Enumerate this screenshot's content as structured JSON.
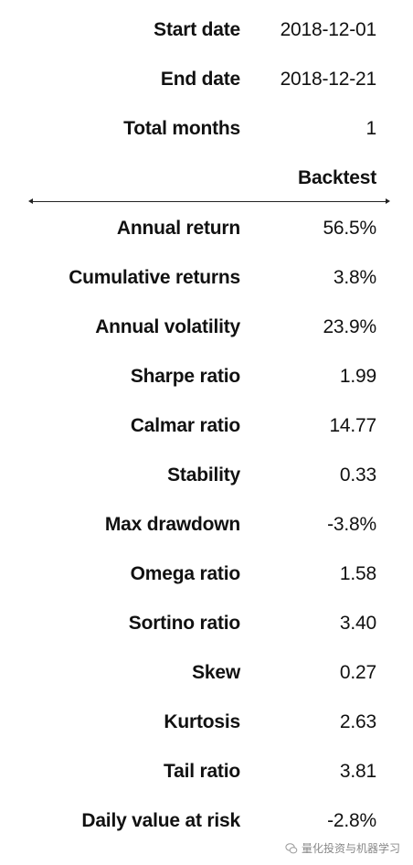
{
  "info": [
    {
      "label": "Start date",
      "value": "2018-12-01"
    },
    {
      "label": "End date",
      "value": "2018-12-21"
    },
    {
      "label": "Total months",
      "value": "1"
    }
  ],
  "header": {
    "label": "",
    "value": "Backtest"
  },
  "metrics": [
    {
      "label": "Annual return",
      "value": "56.5%"
    },
    {
      "label": "Cumulative returns",
      "value": "3.8%"
    },
    {
      "label": "Annual volatility",
      "value": "23.9%"
    },
    {
      "label": "Sharpe ratio",
      "value": "1.99"
    },
    {
      "label": "Calmar ratio",
      "value": "14.77"
    },
    {
      "label": "Stability",
      "value": "0.33"
    },
    {
      "label": "Max drawdown",
      "value": "-3.8%"
    },
    {
      "label": "Omega ratio",
      "value": "1.58"
    },
    {
      "label": "Sortino ratio",
      "value": "3.40"
    },
    {
      "label": "Skew",
      "value": "0.27"
    },
    {
      "label": "Kurtosis",
      "value": "2.63"
    },
    {
      "label": "Tail ratio",
      "value": "3.81"
    },
    {
      "label": "Daily value at risk",
      "value": "-2.8%"
    }
  ],
  "watermark": {
    "text": "量化投资与机器学习",
    "icon": "wechat-icon"
  }
}
